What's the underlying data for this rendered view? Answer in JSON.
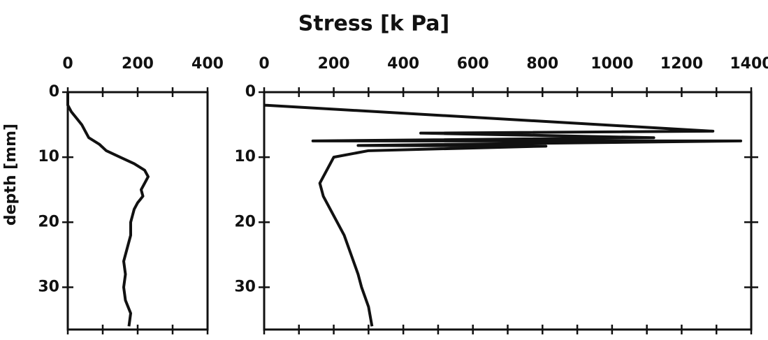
{
  "title": "Stress [k Pa]",
  "ylabel": "depth [mm]",
  "chart_data": [
    {
      "type": "line",
      "xlim": [
        0,
        400
      ],
      "xticks": [
        0,
        200,
        400
      ],
      "xminorticks": [
        100,
        300
      ],
      "ylim": [
        0,
        36.5
      ],
      "yticks": [
        0,
        10,
        20,
        30
      ],
      "invert_y": true,
      "series": [
        {
          "color": "#111111",
          "x": [
            0,
            0,
            10,
            25,
            40,
            50,
            60,
            90,
            110,
            150,
            190,
            220,
            230,
            220,
            210,
            215,
            200,
            190,
            185,
            180,
            180,
            170,
            160,
            165,
            160,
            165,
            180,
            175
          ],
          "values": [
            0,
            2,
            3,
            4,
            5,
            6,
            7,
            8,
            9,
            10,
            11,
            12,
            13,
            14,
            15,
            16,
            17,
            18,
            19,
            20,
            22,
            24,
            26,
            28,
            30,
            32,
            34,
            36
          ]
        }
      ]
    },
    {
      "type": "line",
      "xlim": [
        0,
        1400
      ],
      "xticks": [
        0,
        200,
        400,
        600,
        800,
        1000,
        1200,
        1400
      ],
      "xminorticks": [
        100,
        300,
        500,
        700,
        900,
        1100,
        1300
      ],
      "ylim": [
        0,
        36.5
      ],
      "yticks": [
        0,
        10,
        20,
        30
      ],
      "invert_y": true,
      "series": [
        {
          "color": "#111111",
          "x": [
            0,
            1290,
            450,
            1120,
            140,
            1370,
            270,
            810,
            300,
            200,
            180,
            160,
            170,
            190,
            210,
            230,
            250,
            270,
            280,
            300,
            310
          ],
          "values": [
            2,
            6,
            6.3,
            7,
            7.5,
            7.5,
            8.2,
            8.3,
            9,
            10,
            12,
            14,
            16,
            18,
            20,
            22,
            25,
            28,
            30,
            33,
            36
          ]
        }
      ]
    }
  ]
}
